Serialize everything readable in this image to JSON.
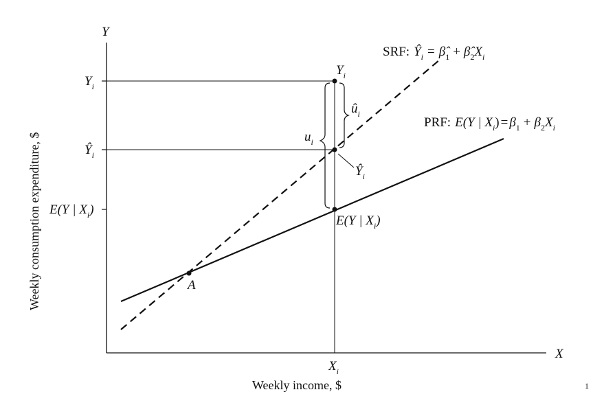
{
  "axes": {
    "y_symbol": "Y",
    "x_symbol": "X",
    "y_title": "Weekly consumption expenditure, $",
    "x_title": "Weekly income, $"
  },
  "y_ticks": {
    "yi": {
      "base": "Y",
      "sub": "i"
    },
    "yhat": {
      "base": "Ŷ",
      "sub": "i"
    },
    "expected": "E(Y | X",
    "expected_sub": "i",
    "expected_close": ")"
  },
  "x_tick": {
    "base": "X",
    "sub": "i"
  },
  "srf": {
    "prefix": "SRF:",
    "lhs": "Ŷ",
    "lhs_sub": "i",
    "eq": "=",
    "b1": "β̂",
    "b1_sub": "1",
    "plus": "+",
    "b2": "β̂",
    "b2_sub": "2",
    "x": "X",
    "x_sub": "i"
  },
  "prf": {
    "prefix": "PRF:",
    "lhs": "E(Y | X",
    "lhs_sub": "i",
    "close": ")",
    "eq": "=",
    "b1": "β",
    "b1_sub": "1",
    "plus": "+",
    "b2": "β",
    "b2_sub": "2",
    "x": "X",
    "x_sub": "i"
  },
  "points": {
    "a": "A",
    "yi": {
      "base": "Y",
      "sub": "i"
    },
    "yhat": {
      "base": "Ŷ",
      "sub": "i"
    },
    "expected": "E(Y | X",
    "expected_sub": "i",
    "expected_close": ")"
  },
  "residuals": {
    "uhat": {
      "base": "û",
      "sub": "i"
    },
    "u": {
      "base": "u",
      "sub": "i"
    }
  },
  "page_number": "1",
  "colors": {
    "ink": "#111111",
    "background": "#ffffff"
  }
}
